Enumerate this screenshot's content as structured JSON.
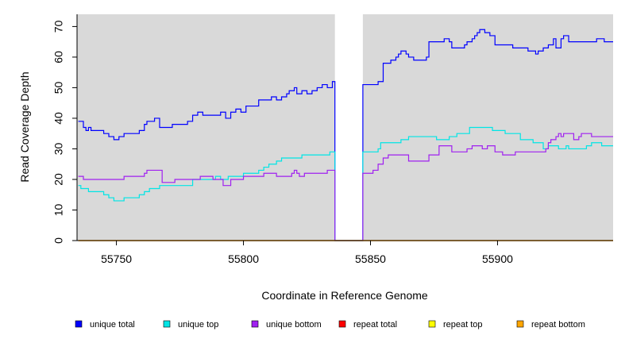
{
  "chart_data": {
    "type": "line",
    "xlabel": "Coordinate in Reference Genome",
    "ylabel": "Read Coverage Depth",
    "xlim": [
      55734.5,
      55945.5
    ],
    "ylim": [
      0,
      74
    ],
    "x_ticks": [
      55750,
      55800,
      55850,
      55900
    ],
    "y_ticks": [
      0,
      10,
      20,
      30,
      40,
      50,
      60,
      70
    ],
    "background": "#d9d9d9",
    "gap": {
      "x": [
        55836,
        55847
      ],
      "fill": "#ffffff"
    },
    "legend_position": "bottom",
    "series": [
      {
        "name": "unique total",
        "color": "#0000ff",
        "points": [
          [
            55735,
            39
          ],
          [
            55737,
            37
          ],
          [
            55738,
            36
          ],
          [
            55739,
            37
          ],
          [
            55740,
            36
          ],
          [
            55745,
            35
          ],
          [
            55747,
            34
          ],
          [
            55749,
            33
          ],
          [
            55751,
            34
          ],
          [
            55753,
            35
          ],
          [
            55759,
            36
          ],
          [
            55761,
            38
          ],
          [
            55762,
            39
          ],
          [
            55765,
            40
          ],
          [
            55767,
            37
          ],
          [
            55772,
            38
          ],
          [
            55777,
            38
          ],
          [
            55778,
            39
          ],
          [
            55780,
            41
          ],
          [
            55782,
            42
          ],
          [
            55784,
            41
          ],
          [
            55791,
            42
          ],
          [
            55793,
            40
          ],
          [
            55795,
            42
          ],
          [
            55797,
            43
          ],
          [
            55799,
            42
          ],
          [
            55801,
            44
          ],
          [
            55803,
            44
          ],
          [
            55806,
            46
          ],
          [
            55809,
            46
          ],
          [
            55811,
            47
          ],
          [
            55813,
            46
          ],
          [
            55815,
            47
          ],
          [
            55817,
            48
          ],
          [
            55818,
            49
          ],
          [
            55820,
            50
          ],
          [
            55821,
            48
          ],
          [
            55823,
            49
          ],
          [
            55825,
            48
          ],
          [
            55827,
            49
          ],
          [
            55829,
            50
          ],
          [
            55831,
            51
          ],
          [
            55833,
            50
          ],
          [
            55835,
            52
          ],
          [
            55836,
            0
          ],
          [
            55847,
            51
          ],
          [
            55853,
            52
          ],
          [
            55855,
            58
          ],
          [
            55858,
            59
          ],
          [
            55860,
            60
          ],
          [
            55861,
            61
          ],
          [
            55862,
            62
          ],
          [
            55864,
            61
          ],
          [
            55865,
            60
          ],
          [
            55867,
            59
          ],
          [
            55872,
            60
          ],
          [
            55873,
            65
          ],
          [
            55879,
            66
          ],
          [
            55881,
            65
          ],
          [
            55882,
            63
          ],
          [
            55887,
            64
          ],
          [
            55888,
            65
          ],
          [
            55890,
            66
          ],
          [
            55891,
            67
          ],
          [
            55892,
            68
          ],
          [
            55893,
            69
          ],
          [
            55895,
            68
          ],
          [
            55897,
            67
          ],
          [
            55899,
            64
          ],
          [
            55906,
            63
          ],
          [
            55912,
            62
          ],
          [
            55915,
            61
          ],
          [
            55916,
            62
          ],
          [
            55918,
            63
          ],
          [
            55920,
            64
          ],
          [
            55922,
            66
          ],
          [
            55923,
            63
          ],
          [
            55925,
            66
          ],
          [
            55926,
            67
          ],
          [
            55928,
            65
          ],
          [
            55939,
            66
          ],
          [
            55942,
            65
          ],
          [
            55945,
            65
          ]
        ]
      },
      {
        "name": "unique top",
        "color": "#00e5e5",
        "points": [
          [
            55735,
            18
          ],
          [
            55736,
            17
          ],
          [
            55739,
            16
          ],
          [
            55745,
            15
          ],
          [
            55747,
            14
          ],
          [
            55749,
            13
          ],
          [
            55753,
            14
          ],
          [
            55759,
            15
          ],
          [
            55761,
            16
          ],
          [
            55763,
            17
          ],
          [
            55765,
            17
          ],
          [
            55767,
            18
          ],
          [
            55780,
            20
          ],
          [
            55782,
            20
          ],
          [
            55789,
            21
          ],
          [
            55791,
            20
          ],
          [
            55794,
            21
          ],
          [
            55800,
            22
          ],
          [
            55806,
            23
          ],
          [
            55808,
            24
          ],
          [
            55810,
            25
          ],
          [
            55813,
            26
          ],
          [
            55815,
            27
          ],
          [
            55822,
            27
          ],
          [
            55823,
            28
          ],
          [
            55830,
            28
          ],
          [
            55832,
            28
          ],
          [
            55834,
            29
          ],
          [
            55836,
            0
          ],
          [
            55847,
            29
          ],
          [
            55853,
            30
          ],
          [
            55854,
            32
          ],
          [
            55862,
            33
          ],
          [
            55865,
            34
          ],
          [
            55876,
            33
          ],
          [
            55881,
            34
          ],
          [
            55884,
            35
          ],
          [
            55887,
            35
          ],
          [
            55889,
            37
          ],
          [
            55898,
            36
          ],
          [
            55903,
            35
          ],
          [
            55909,
            33
          ],
          [
            55914,
            32
          ],
          [
            55916,
            32
          ],
          [
            55918,
            30
          ],
          [
            55920,
            31
          ],
          [
            55924,
            30
          ],
          [
            55927,
            31
          ],
          [
            55928,
            30
          ],
          [
            55935,
            31
          ],
          [
            55937,
            32
          ],
          [
            55941,
            31
          ],
          [
            55945,
            31
          ]
        ]
      },
      {
        "name": "unique bottom",
        "color": "#a020f0",
        "points": [
          [
            55735,
            21
          ],
          [
            55737,
            20
          ],
          [
            55753,
            21
          ],
          [
            55761,
            22
          ],
          [
            55762,
            23
          ],
          [
            55768,
            19
          ],
          [
            55773,
            20
          ],
          [
            55783,
            21
          ],
          [
            55788,
            20
          ],
          [
            55789,
            20
          ],
          [
            55792,
            18
          ],
          [
            55795,
            20
          ],
          [
            55800,
            21
          ],
          [
            55805,
            21
          ],
          [
            55808,
            22
          ],
          [
            55811,
            22
          ],
          [
            55813,
            21
          ],
          [
            55819,
            22
          ],
          [
            55820,
            23
          ],
          [
            55821,
            22
          ],
          [
            55822,
            21
          ],
          [
            55824,
            22
          ],
          [
            55829,
            22
          ],
          [
            55833,
            23
          ],
          [
            55836,
            0
          ],
          [
            55847,
            22
          ],
          [
            55851,
            23
          ],
          [
            55853,
            25
          ],
          [
            55855,
            27
          ],
          [
            55857,
            28
          ],
          [
            55865,
            26
          ],
          [
            55873,
            28
          ],
          [
            55877,
            31
          ],
          [
            55882,
            29
          ],
          [
            55888,
            30
          ],
          [
            55890,
            31
          ],
          [
            55894,
            30
          ],
          [
            55896,
            31
          ],
          [
            55899,
            29
          ],
          [
            55902,
            28
          ],
          [
            55907,
            29
          ],
          [
            55919,
            30
          ],
          [
            55920,
            32
          ],
          [
            55921,
            33
          ],
          [
            55923,
            34
          ],
          [
            55924,
            35
          ],
          [
            55925,
            34
          ],
          [
            55926,
            35
          ],
          [
            55930,
            33
          ],
          [
            55932,
            34
          ],
          [
            55933,
            35
          ],
          [
            55937,
            34
          ],
          [
            55945,
            34
          ]
        ]
      },
      {
        "name": "repeat total",
        "color": "#ff0000",
        "points": [
          [
            55735,
            0
          ],
          [
            55945,
            0
          ]
        ]
      },
      {
        "name": "repeat top",
        "color": "#ffff00",
        "points": [
          [
            55735,
            0
          ],
          [
            55945,
            0
          ]
        ]
      },
      {
        "name": "repeat bottom",
        "color": "#ffa500",
        "points": [
          [
            55735,
            0
          ],
          [
            55945,
            0
          ]
        ]
      }
    ]
  }
}
